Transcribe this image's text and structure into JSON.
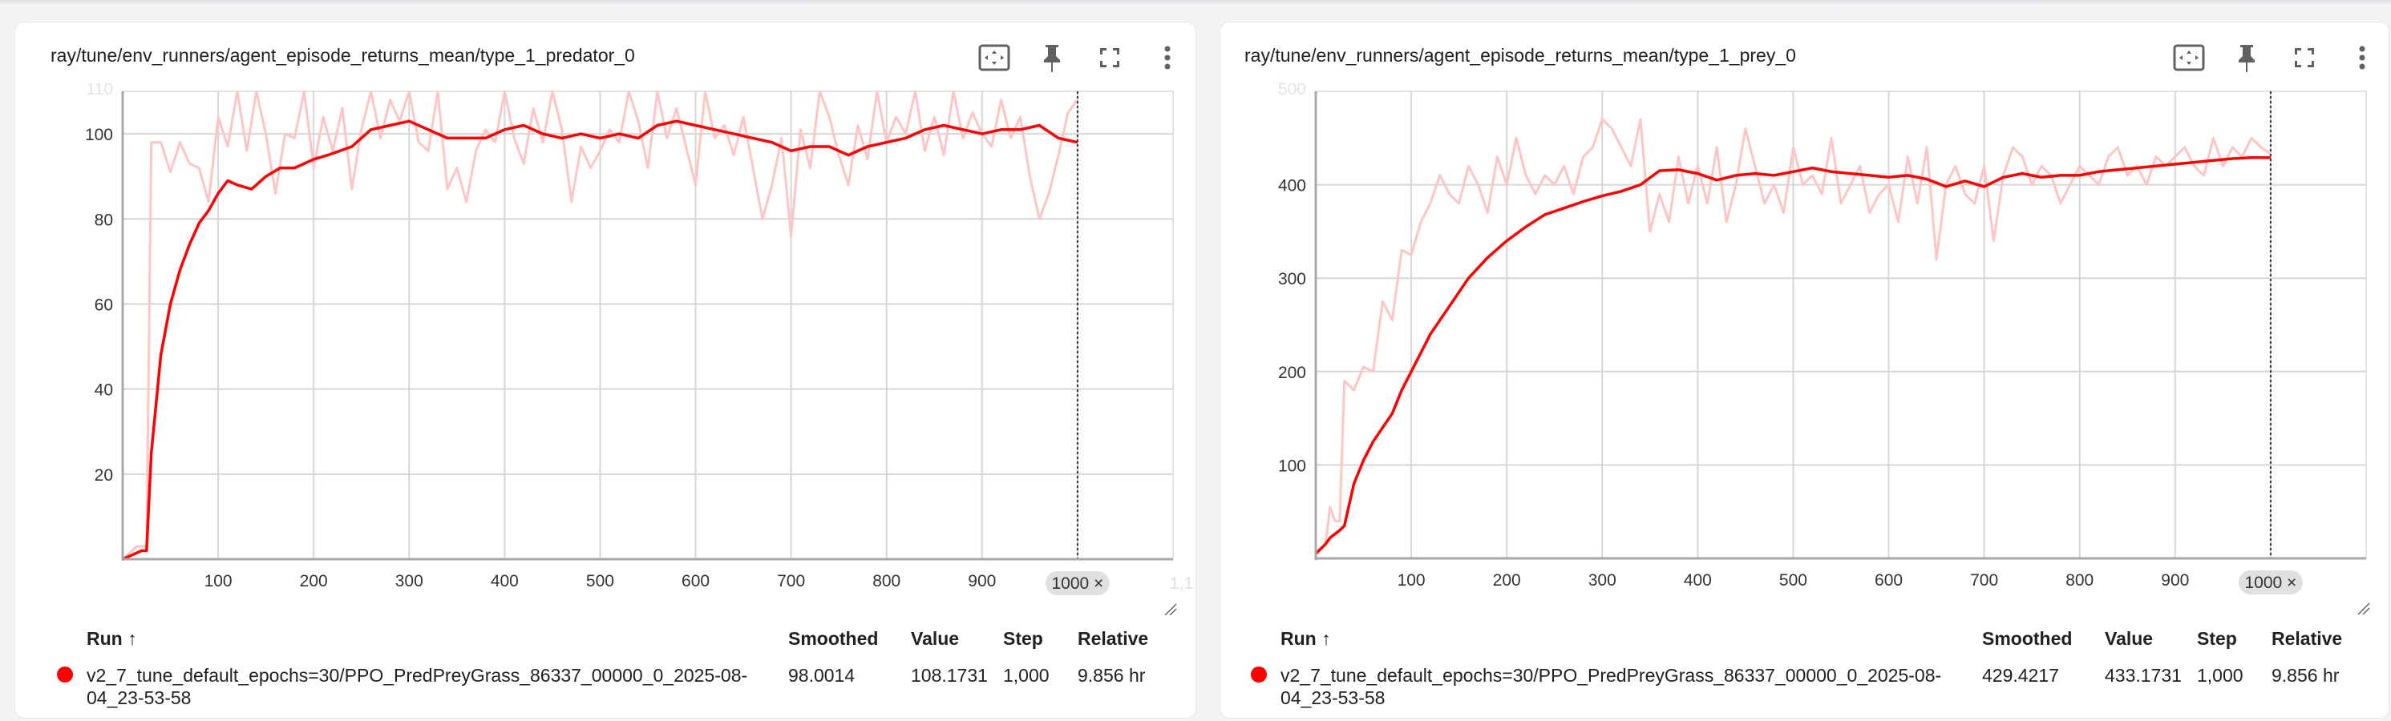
{
  "cards": [
    {
      "title": "ray/tune/env_runners/agent_episode_returns_mean/type_1_predator_0",
      "toolbar": [
        {
          "name": "fit-domain-icon",
          "label": "Fit domain to data"
        },
        {
          "name": "pin-icon",
          "label": "Pin card"
        },
        {
          "name": "fullscreen-icon",
          "label": "Toggle full size"
        },
        {
          "name": "more-vert-icon",
          "label": "More"
        }
      ],
      "table": {
        "headers": {
          "run": "Run ↑",
          "smoothed": "Smoothed",
          "value": "Value",
          "step": "Step",
          "relative": "Relative"
        },
        "rows": [
          {
            "color": "#ff0000",
            "run_line1": "v2_7_tune_default_epochs=30/PPO_PredPreyGrass_86337_00000_0_2025-08-",
            "run_line2": "04_23-53-58",
            "smoothed": "98.0014",
            "value": "108.1731",
            "step": "1,000",
            "relative": "9.856 hr"
          }
        ]
      },
      "step_chip": "1000 ×",
      "faded_next_tick": "1,1"
    },
    {
      "title": "ray/tune/env_runners/agent_episode_returns_mean/type_1_prey_0",
      "toolbar": [
        {
          "name": "fit-domain-icon",
          "label": "Fit domain to data"
        },
        {
          "name": "pin-icon",
          "label": "Pin card"
        },
        {
          "name": "fullscreen-icon",
          "label": "Toggle full size"
        },
        {
          "name": "more-vert-icon",
          "label": "More"
        }
      ],
      "table": {
        "headers": {
          "run": "Run ↑",
          "smoothed": "Smoothed",
          "value": "Value",
          "step": "Step",
          "relative": "Relative"
        },
        "rows": [
          {
            "color": "#ff0000",
            "run_line1": "v2_7_tune_default_epochs=30/PPO_PredPreyGrass_86337_00000_0_2025-08-",
            "run_line2": "04_23-53-58",
            "smoothed": "429.4217",
            "value": "433.1731",
            "step": "1,000",
            "relative": "9.856 hr"
          }
        ]
      },
      "step_chip": "1000 ×",
      "faded_next_tick": ""
    }
  ],
  "chart_data": [
    {
      "type": "line",
      "title": "ray/tune/env_runners/agent_episode_returns_mean/type_1_predator_0",
      "xlabel": "Step",
      "ylabel": "",
      "xlim": [
        0,
        1100
      ],
      "ylim": [
        0,
        110
      ],
      "x_ticks": [
        100,
        200,
        300,
        400,
        500,
        600,
        700,
        800,
        900,
        1000
      ],
      "y_ticks": [
        20,
        40,
        60,
        80,
        100
      ],
      "grid": true,
      "legend": "table below chart",
      "colors": {
        "smoothed": "#ff0000",
        "raw": "#ffc4c4"
      },
      "series": [
        {
          "name": "smoothed",
          "x": [
            0,
            10,
            20,
            25,
            30,
            40,
            50,
            60,
            70,
            80,
            90,
            100,
            110,
            120,
            135,
            150,
            165,
            180,
            200,
            215,
            240,
            260,
            280,
            300,
            320,
            340,
            360,
            380,
            400,
            420,
            440,
            460,
            480,
            500,
            520,
            540,
            560,
            580,
            600,
            620,
            640,
            660,
            680,
            700,
            720,
            740,
            760,
            780,
            800,
            820,
            840,
            860,
            880,
            900,
            920,
            940,
            960,
            980,
            1000
          ],
          "values": [
            0,
            1,
            2,
            2,
            25,
            48,
            60,
            68,
            74,
            79,
            82,
            86,
            89,
            88,
            87,
            90,
            92,
            92,
            94,
            95,
            97,
            101,
            102,
            103,
            101,
            99,
            99,
            99,
            101,
            102,
            100,
            99,
            100,
            99,
            100,
            99,
            102,
            103,
            102,
            101,
            100,
            99,
            98,
            96,
            97,
            97,
            95,
            97,
            98,
            99,
            101,
            102,
            101,
            100,
            101,
            101,
            102,
            99,
            98
          ]
        },
        {
          "name": "raw",
          "x": [
            0,
            15,
            25,
            30,
            40,
            50,
            60,
            70,
            80,
            90,
            100,
            110,
            120,
            130,
            140,
            150,
            160,
            170,
            180,
            190,
            200,
            210,
            220,
            230,
            240,
            250,
            260,
            270,
            280,
            290,
            300,
            310,
            320,
            330,
            340,
            350,
            360,
            370,
            380,
            390,
            400,
            410,
            420,
            430,
            440,
            450,
            460,
            470,
            480,
            490,
            500,
            510,
            520,
            530,
            540,
            550,
            560,
            570,
            580,
            590,
            600,
            610,
            620,
            630,
            640,
            650,
            660,
            670,
            680,
            690,
            700,
            710,
            720,
            730,
            740,
            750,
            760,
            770,
            780,
            790,
            800,
            810,
            820,
            830,
            840,
            850,
            860,
            870,
            880,
            890,
            900,
            910,
            920,
            930,
            940,
            950,
            960,
            970,
            980,
            990,
            1000
          ],
          "values": [
            0,
            3,
            3,
            98,
            98,
            91,
            98,
            93,
            92,
            84,
            104,
            97,
            110,
            96,
            110,
            100,
            86,
            100,
            99,
            110,
            92,
            104,
            96,
            106,
            87,
            101,
            110,
            99,
            108,
            103,
            110,
            98,
            96,
            110,
            87,
            92,
            84,
            96,
            101,
            98,
            110,
            99,
            93,
            106,
            98,
            110,
            101,
            84,
            97,
            92,
            96,
            101,
            98,
            110,
            103,
            92,
            110,
            99,
            106,
            97,
            88,
            110,
            99,
            102,
            95,
            104,
            92,
            80,
            88,
            99,
            76,
            101,
            92,
            110,
            104,
            95,
            88,
            102,
            94,
            110,
            98,
            104,
            100,
            110,
            96,
            104,
            95,
            110,
            99,
            105,
            100,
            97,
            108,
            99,
            104,
            90,
            80,
            86,
            95,
            105,
            108
          ]
        }
      ]
    },
    {
      "type": "line",
      "title": "ray/tune/env_runners/agent_episode_returns_mean/type_1_prey_0",
      "xlabel": "Step",
      "ylabel": "",
      "xlim": [
        0,
        1100
      ],
      "ylim": [
        0,
        500
      ],
      "x_ticks": [
        100,
        200,
        300,
        400,
        500,
        600,
        700,
        800,
        900,
        1000
      ],
      "y_ticks": [
        100,
        200,
        300,
        400
      ],
      "grid": true,
      "legend": "table below chart",
      "colors": {
        "smoothed": "#ff0000",
        "raw": "#ffc4c4"
      },
      "series": [
        {
          "name": "smoothed",
          "x": [
            0,
            10,
            15,
            25,
            30,
            40,
            50,
            60,
            70,
            80,
            90,
            100,
            120,
            140,
            160,
            180,
            200,
            220,
            240,
            260,
            280,
            300,
            320,
            340,
            360,
            380,
            400,
            420,
            440,
            460,
            480,
            500,
            520,
            540,
            560,
            580,
            600,
            620,
            640,
            660,
            680,
            700,
            720,
            740,
            760,
            780,
            800,
            820,
            840,
            860,
            880,
            900,
            920,
            940,
            960,
            980,
            1000
          ],
          "values": [
            5,
            15,
            22,
            30,
            35,
            80,
            105,
            125,
            140,
            155,
            180,
            200,
            240,
            270,
            300,
            322,
            340,
            355,
            368,
            375,
            382,
            388,
            393,
            400,
            415,
            416,
            412,
            405,
            410,
            412,
            410,
            414,
            418,
            414,
            412,
            410,
            408,
            410,
            406,
            398,
            404,
            398,
            408,
            412,
            408,
            410,
            410,
            414,
            416,
            418,
            420,
            422,
            424,
            426,
            428,
            429,
            429
          ]
        },
        {
          "name": "raw",
          "x": [
            0,
            10,
            15,
            20,
            25,
            30,
            40,
            50,
            60,
            70,
            80,
            90,
            100,
            110,
            120,
            130,
            140,
            150,
            160,
            170,
            180,
            190,
            200,
            210,
            220,
            230,
            240,
            250,
            260,
            270,
            280,
            290,
            300,
            310,
            320,
            330,
            340,
            350,
            360,
            370,
            380,
            390,
            400,
            410,
            420,
            430,
            440,
            450,
            460,
            470,
            480,
            490,
            500,
            510,
            520,
            530,
            540,
            550,
            560,
            570,
            580,
            590,
            600,
            610,
            620,
            630,
            640,
            650,
            660,
            670,
            680,
            690,
            700,
            710,
            720,
            730,
            740,
            750,
            760,
            770,
            780,
            790,
            800,
            810,
            820,
            830,
            840,
            850,
            860,
            870,
            880,
            890,
            900,
            910,
            920,
            930,
            940,
            950,
            960,
            970,
            980,
            990,
            1000
          ],
          "values": [
            5,
            15,
            55,
            40,
            40,
            190,
            180,
            205,
            200,
            275,
            255,
            330,
            325,
            360,
            380,
            410,
            390,
            380,
            420,
            400,
            370,
            430,
            400,
            450,
            410,
            390,
            410,
            400,
            420,
            390,
            430,
            440,
            470,
            460,
            440,
            420,
            470,
            350,
            390,
            360,
            430,
            380,
            420,
            380,
            440,
            360,
            400,
            460,
            420,
            380,
            400,
            370,
            440,
            400,
            410,
            390,
            450,
            380,
            400,
            420,
            370,
            390,
            400,
            360,
            430,
            380,
            440,
            320,
            400,
            420,
            390,
            380,
            420,
            340,
            410,
            440,
            430,
            400,
            420,
            410,
            380,
            400,
            420,
            410,
            400,
            430,
            440,
            410,
            420,
            400,
            430,
            420,
            430,
            440,
            420,
            410,
            450,
            420,
            440,
            430,
            450,
            440,
            433
          ]
        }
      ]
    }
  ]
}
